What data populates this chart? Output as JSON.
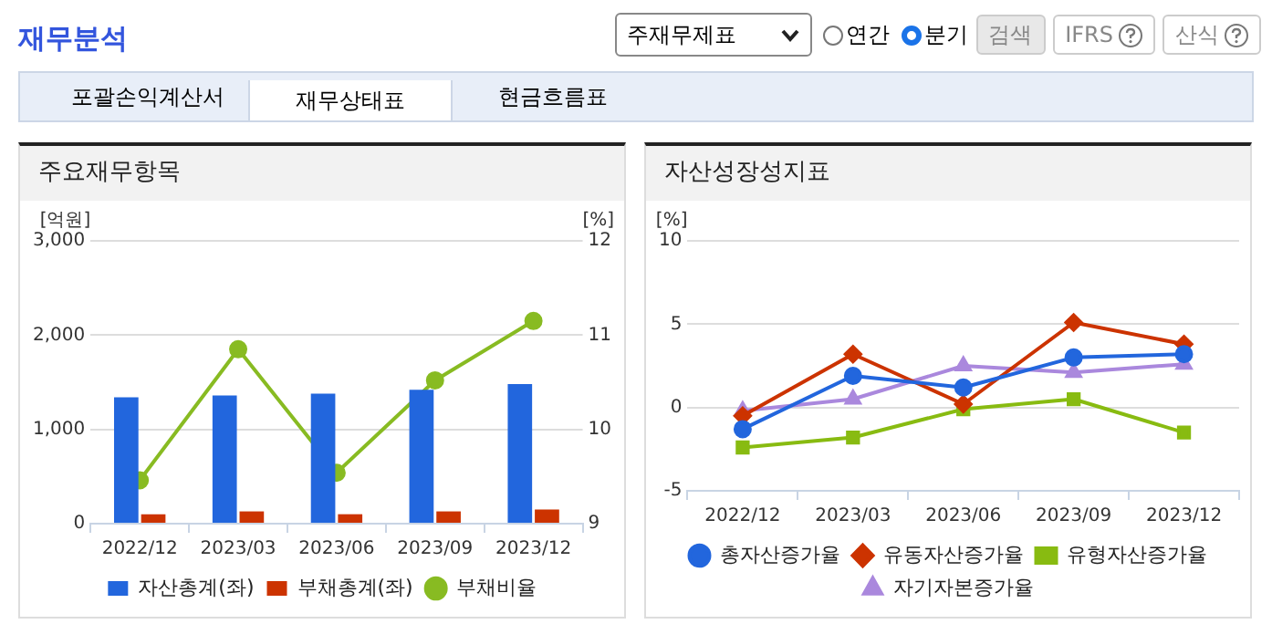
{
  "chart_data": [
    {
      "type": "bar",
      "title": "주요재무항목",
      "ylabel": "[억원]",
      "y2label": "[%]",
      "annotations": [
        "재무분석",
        "주재무제표",
        "연간",
        "분기",
        "검색",
        "IFRS",
        "산식",
        "포괄손익계산서",
        "재무상태표",
        "현금흐름표"
      ],
      "categories": [
        "2022/12",
        "2023/03",
        "2023/06",
        "2023/09",
        "2023/12"
      ],
      "series": [
        {
          "name": "자산총계(좌)",
          "color": "#2266dd",
          "values": [
            1340,
            1360,
            1380,
            1420,
            1480
          ]
        },
        {
          "name": "부채총계(좌)",
          "color": "#cc3300",
          "values": [
            100,
            130,
            100,
            130,
            150
          ]
        },
        {
          "name": "부채비율",
          "type": "line",
          "axis": "y2",
          "color": "#88bb22",
          "marker": "circle",
          "values": [
            9.46,
            10.85,
            9.54,
            10.52,
            11.15
          ]
        }
      ],
      "ylim": [
        0,
        3000
      ],
      "yticks": [
        0,
        {
          "value": 1000,
          "label": "1,000"
        },
        {
          "value": 2000,
          "label": "2,000"
        },
        {
          "value": 3000,
          "label": "3,000"
        }
      ],
      "y2lim": [
        9,
        12
      ],
      "y2ticks": [
        9,
        10,
        11,
        12
      ],
      "grid": "y",
      "legend": "bottom"
    },
    {
      "type": "line",
      "title": "자산성장성지표",
      "ylabel": "[%]",
      "categories": [
        "2022/12",
        "2023/03",
        "2023/06",
        "2023/09",
        "2023/12"
      ],
      "series": [
        {
          "name": "총자산증가율",
          "color": "#2266dd",
          "marker": "circle",
          "values": [
            -1.3,
            1.9,
            1.2,
            3.0,
            3.2
          ]
        },
        {
          "name": "유동자산증가율",
          "color": "#cc3300",
          "marker": "diamond",
          "values": [
            -0.5,
            3.2,
            0.2,
            5.1,
            3.8
          ]
        },
        {
          "name": "유형자산증가율",
          "color": "#88bb11",
          "marker": "square",
          "values": [
            -2.4,
            -1.8,
            -0.1,
            0.5,
            -1.5
          ]
        },
        {
          "name": "자기자본증가율",
          "color": "#aa88dd",
          "marker": "triangle",
          "values": [
            -0.2,
            0.5,
            2.5,
            2.1,
            2.6
          ]
        }
      ],
      "ylim": [
        -5,
        10
      ],
      "yticks": [
        -5,
        0,
        5,
        10
      ],
      "grid": "y",
      "legend": "bottom"
    }
  ]
}
